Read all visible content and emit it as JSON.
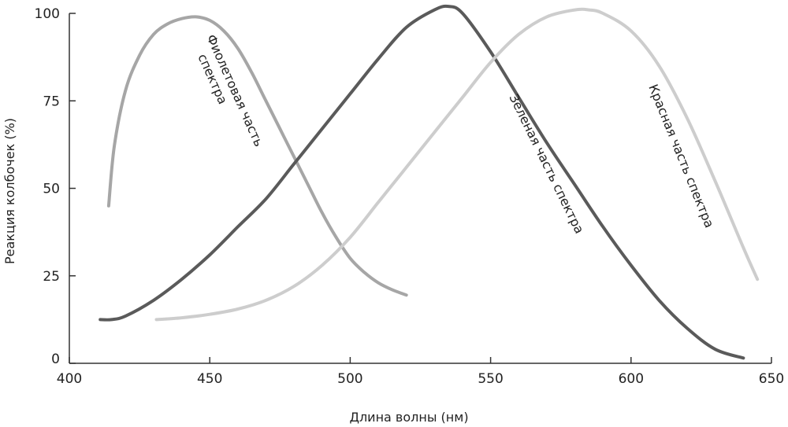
{
  "chart_data": {
    "type": "line",
    "xlabel": "Длина волны (нм)",
    "ylabel": "Реакция колбочек (%)",
    "xlim": [
      400,
      650
    ],
    "ylim": [
      0,
      100
    ],
    "x_ticks": [
      "400",
      "450",
      "500",
      "550",
      "600",
      "650"
    ],
    "y_ticks": [
      "0",
      "25",
      "50",
      "75",
      "100"
    ],
    "grid": false,
    "series": [
      {
        "name": "Фиолетовая часть спектра",
        "color": "#a6a6a6",
        "x": [
          414,
          416,
          420,
          425,
          430,
          435,
          440,
          445,
          450,
          455,
          460,
          465,
          470,
          475,
          480,
          485,
          490,
          495,
          500,
          505,
          510,
          515,
          520
        ],
        "y": [
          45,
          62,
          78,
          88,
          94,
          97,
          98.5,
          99,
          98,
          95,
          90,
          83,
          75,
          67,
          59,
          51,
          43,
          36,
          30,
          26,
          23,
          21,
          19.5
        ]
      },
      {
        "name": "Зеленая часть спектра",
        "color": "#5a5a5a",
        "x": [
          411,
          415,
          420,
          430,
          440,
          450,
          460,
          470,
          480,
          490,
          500,
          510,
          520,
          530,
          535,
          540,
          550,
          560,
          570,
          580,
          590,
          600,
          610,
          620,
          630,
          640
        ],
        "y": [
          12.5,
          12.5,
          13.5,
          18,
          24,
          31,
          39,
          47,
          57,
          67,
          77,
          87,
          96,
          101,
          102,
          100,
          89,
          76,
          63,
          51,
          39,
          28,
          18,
          10,
          4,
          1.5
        ]
      },
      {
        "name": "Красная часть спектра",
        "color": "#cdcdcd",
        "x": [
          431,
          440,
          450,
          460,
          470,
          480,
          490,
          500,
          510,
          520,
          530,
          540,
          550,
          560,
          570,
          580,
          585,
          590,
          600,
          610,
          620,
          630,
          640,
          645
        ],
        "y": [
          12.5,
          13,
          14,
          15.5,
          18,
          22,
          28,
          36,
          46,
          56,
          66,
          76,
          86,
          94,
          99,
          101,
          101,
          100,
          95,
          85,
          70,
          52,
          33,
          24
        ]
      }
    ]
  }
}
